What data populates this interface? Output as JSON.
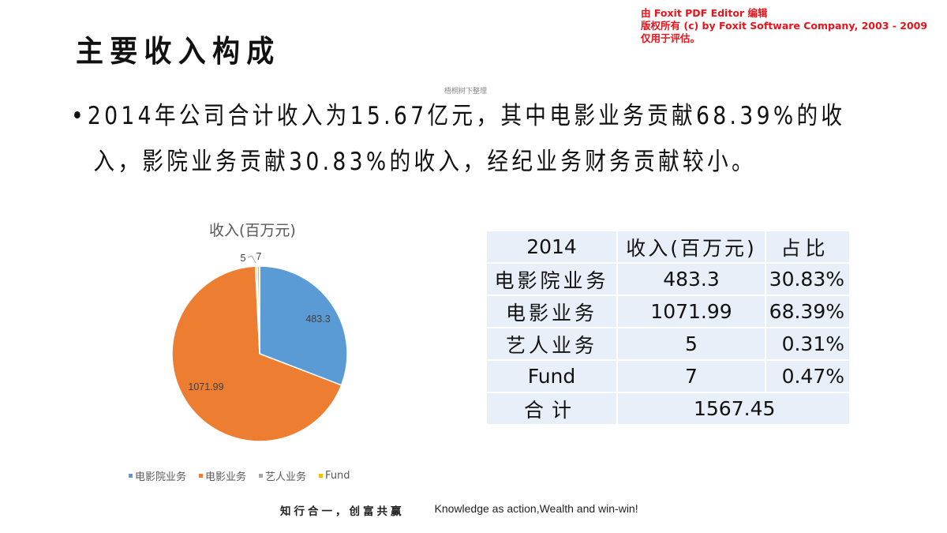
{
  "watermark": {
    "line1": "由 Foxit PDF Editor 编辑",
    "line2": "版权所有 (c) by Foxit Software Company, 2003 - 2009",
    "line3": "仅用于评估。",
    "color": "#e8141c"
  },
  "slide": {
    "title": "主要收入构成",
    "source_note": "梧桐树下整理",
    "bullet_marker": "•",
    "bullet_line1": "2014年公司合计收入为15.67亿元，其中电影业务贡献68.39%的收",
    "bullet_line2": "入，影院业务贡献30.83%的收入，经纪业务财务贡献较小。"
  },
  "chart_data": {
    "type": "pie",
    "title": "收入(百万元)",
    "categories": [
      "电影院业务",
      "电影业务",
      "艺人业务",
      "Fund"
    ],
    "values": [
      483.3,
      1071.99,
      5,
      7
    ],
    "data_labels": [
      "483.3",
      "1071.99",
      "5",
      "7"
    ],
    "colors": [
      "#5b9bd5",
      "#ed7d31",
      "#a5a5a5",
      "#ffc000"
    ],
    "legend_position": "bottom"
  },
  "legend": [
    {
      "label": "电影院业务",
      "color": "#5b9bd5"
    },
    {
      "label": "电影业务",
      "color": "#ed7d31"
    },
    {
      "label": "艺人业务",
      "color": "#a5a5a5"
    },
    {
      "label": "Fund",
      "color": "#ffc000"
    }
  ],
  "table": {
    "headers": [
      "2014",
      "收入(百万元)",
      "占比"
    ],
    "rows": [
      [
        "电影院业务",
        "483.3",
        "30.83%"
      ],
      [
        "电影业务",
        "1071.99",
        "68.39%"
      ],
      [
        "艺人业务",
        "5",
        "0.31%"
      ],
      [
        "Fund",
        "7",
        "0.47%"
      ]
    ],
    "total_label": "合计",
    "total_value": "1567.45",
    "cell_bg": "#e9eff8"
  },
  "footer": {
    "cn": "知行合一，创富共赢",
    "en": "Knowledge as action,Wealth and win-win!"
  }
}
